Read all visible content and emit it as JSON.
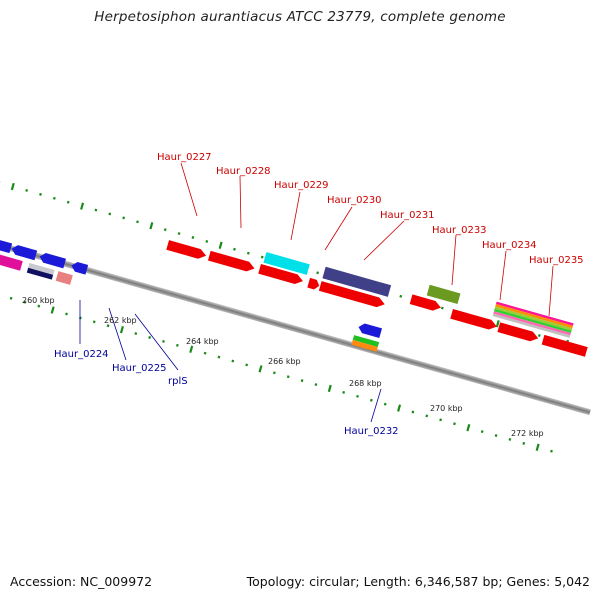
{
  "title": "Herpetosiphon aurantiacus ATCC 23779, complete genome",
  "footer": {
    "accession": "Accession: NC_009972",
    "topology": "Topology: circular; Length: 6,346,587 bp; Genes: 5,042"
  },
  "colors": {
    "upper_label": "#cc0000",
    "lower_label": "#000099",
    "tick_dot": "#1a8a1a",
    "backbone": "#8a8a8a"
  },
  "scale_ticks": [
    "260 kbp",
    "262 kbp",
    "264 kbp",
    "266 kbp",
    "268 kbp",
    "270 kbp",
    "272 kbp"
  ],
  "upper_labels": [
    "Haur_0227",
    "Haur_0228",
    "Haur_0229",
    "Haur_0230",
    "Haur_0231",
    "Haur_0233",
    "Haur_0234",
    "Haur_0235"
  ],
  "lower_labels": [
    "Haur_0224",
    "Haur_0225",
    "rplS",
    "Haur_0232"
  ]
}
